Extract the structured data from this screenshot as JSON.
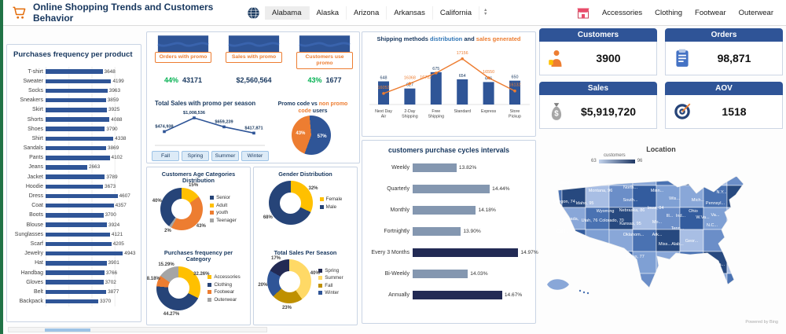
{
  "header": {
    "title": "Online Shopping Trends and Customers Behavior",
    "states": [
      "Alabama",
      "Alaska",
      "Arizona",
      "Arkansas",
      "California"
    ],
    "categories": [
      "Accessories",
      "Clothing",
      "Footwear",
      "Outerwear"
    ],
    "icons": [
      "cart-icon",
      "globe-icon",
      "shop-icon",
      "slicer-scroll-icon"
    ]
  },
  "promo": {
    "banners": [
      {
        "label": "Orders with promo",
        "pct": "44%",
        "value": "43171"
      },
      {
        "label": "Sales with promo",
        "pct": "",
        "value": "$2,560,564"
      },
      {
        "label": "Customers use promo",
        "pct": "43%",
        "value": "1677"
      }
    ],
    "season_buttons": [
      "Fall",
      "Spring",
      "Summer",
      "Winter"
    ],
    "pie_title_parts": [
      "Promo code vs ",
      "non promo code",
      " users"
    ]
  },
  "kpis": [
    {
      "label": "Customers",
      "value": "3900",
      "icon": "shopper-icon"
    },
    {
      "label": "Orders",
      "value": "98,871",
      "icon": "clipboard-icon"
    },
    {
      "label": "Sales",
      "value": "$5,919,720",
      "icon": "moneybag-icon"
    },
    {
      "label": "AOV",
      "value": "1518",
      "icon": "target-icon"
    }
  ],
  "chart_data": [
    {
      "id": "products",
      "type": "bar",
      "orientation": "horizontal",
      "title": "Purchases frequency per product",
      "categories": [
        "T-shirt",
        "Sweater",
        "Socks",
        "Sneakers",
        "Skirt",
        "Shorts",
        "Shoes",
        "Shirt",
        "Sandals",
        "Pants",
        "Jeans",
        "Jacket",
        "Hoodie",
        "Dress",
        "Coat",
        "Boots",
        "Blouse",
        "Sunglasses",
        "Scarf",
        "Jewelry",
        "Hat",
        "Handbag",
        "Gloves",
        "Belt",
        "Backpack"
      ],
      "values": [
        3648,
        4199,
        3963,
        3859,
        3925,
        4088,
        3790,
        4338,
        3869,
        4102,
        2663,
        3789,
        3673,
        4607,
        4357,
        3700,
        3924,
        4121,
        4205,
        4943,
        3901,
        3766,
        3702,
        3877,
        3370
      ],
      "xlim": [
        0,
        5000
      ],
      "bar_color": "#2F5597"
    },
    {
      "id": "promo_season_sales",
      "type": "line",
      "title": "Total Sales with promo per season",
      "categories": [
        "Fall",
        "Spring",
        "Summer",
        "Winter"
      ],
      "values": [
        474938,
        1008536,
        659239,
        417871
      ],
      "labels": [
        "$474,938",
        "$1,008,536",
        "$659,239",
        "$417,871"
      ],
      "ylim": [
        0,
        1100000
      ],
      "line_color": "#2F5597"
    },
    {
      "id": "promo_users",
      "type": "pie",
      "title": "Promo code vs non promo code users",
      "categories": [
        "Promo code users",
        "Non promo code users"
      ],
      "values": [
        43,
        57
      ],
      "labels": [
        "43%",
        "57%"
      ],
      "colors": [
        "#ED7D31",
        "#2F5597"
      ],
      "start": 200
    },
    {
      "id": "age_distribution",
      "type": "pie",
      "donut": true,
      "title": "Customers Age Categories Distribution",
      "categories": [
        "Senior",
        "Adult",
        "youth",
        "Teenager"
      ],
      "values": [
        40,
        15,
        43,
        2
      ],
      "labels": [
        "40%",
        "15%",
        "43%",
        "2%"
      ],
      "colors": [
        "#264478",
        "#FFC000",
        "#ED7D31",
        "#A5A5A5"
      ],
      "start": 216,
      "legend_position": "right"
    },
    {
      "id": "gender_distribution",
      "type": "pie",
      "donut": true,
      "title": "Gender Distribution",
      "categories": [
        "Female",
        "Male"
      ],
      "values": [
        32,
        68
      ],
      "labels": [
        "32%",
        "68%"
      ],
      "colors": [
        "#FFC000",
        "#264478"
      ],
      "start": 0,
      "legend_position": "right"
    },
    {
      "id": "category_frequency",
      "type": "pie",
      "donut": true,
      "title": "Purchases frequency per Category",
      "categories": [
        "Accessories",
        "Clothing",
        "Footwear",
        "Outerwear"
      ],
      "values": [
        32.26,
        44.27,
        8.18,
        15.29
      ],
      "labels": [
        "32.26%",
        "44.27%",
        "8.18%",
        "15.29%"
      ],
      "colors": [
        "#FFC000",
        "#264478",
        "#ED7D31",
        "#A5A5A5"
      ],
      "start": 0,
      "legend_position": "right"
    },
    {
      "id": "season_sales_share",
      "type": "pie",
      "donut": true,
      "title": "Total Sales Per Season",
      "categories": [
        "Spring",
        "Summer",
        "Fall",
        "Winter"
      ],
      "values": [
        17,
        40,
        23,
        20
      ],
      "labels": [
        "17%",
        "40%",
        "23%",
        "20%"
      ],
      "colors": [
        "#222A54",
        "#FFD966",
        "#BF9000",
        "#2F5597"
      ],
      "start": 299,
      "legend_position": "right"
    },
    {
      "id": "shipping",
      "type": "bar",
      "combo": true,
      "title_parts": [
        "Shipping methods ",
        "distribution",
        " and ",
        "sales generated"
      ],
      "categories": [
        "Next Day\nAir",
        "2-Day\nShipping",
        "Free\nShipping",
        "Standard",
        "Express",
        "Store\nPickup"
      ],
      "series": [
        {
          "name": "distribution",
          "type": "bar",
          "color": "#2F5597",
          "values": [
            648,
            627,
            675,
            654,
            646,
            650
          ]
        },
        {
          "name": "sales generated",
          "type": "line",
          "color": "#ED7D31",
          "values": [
            16052,
            16368,
            16702,
            17156,
            16550,
            16132
          ]
        }
      ],
      "bar_ylim": [
        580,
        700
      ],
      "line_ylim": [
        15700,
        17400
      ]
    },
    {
      "id": "purchase_cycles",
      "type": "bar",
      "orientation": "horizontal",
      "title": "customers purchase cycles intervals",
      "categories": [
        "Weekly",
        "Quarterly",
        "Monthly",
        "Fortnightly",
        "Every 3 Months",
        "Bi-Weekly",
        "Annually"
      ],
      "values": [
        13.82,
        14.44,
        14.18,
        13.9,
        14.97,
        14.03,
        14.67
      ],
      "labels": [
        "13.82%",
        "14.44%",
        "14.18%",
        "13.90%",
        "14.97%",
        "14.03%",
        "14.67%"
      ],
      "bar_colors": [
        "#8497B0",
        "#8497B0",
        "#8497B0",
        "#8497B0",
        "#222A54",
        "#8497B0",
        "#222A54"
      ],
      "xlim": [
        13,
        15.2
      ]
    },
    {
      "id": "location_map",
      "type": "choropleth",
      "title": "Location",
      "legend": {
        "label": "customers",
        "min": "63",
        "max": "96"
      },
      "attribution": "Powered by Bing",
      "state_labels": [
        {
          "label": "Wash.",
          "x": 30,
          "y": 22
        },
        {
          "label": "Montana, 96",
          "x": 74,
          "y": 32
        },
        {
          "label": "North...",
          "x": 112,
          "y": 28
        },
        {
          "label": "Minn...",
          "x": 146,
          "y": 32
        },
        {
          "label": "Wis...",
          "x": 168,
          "y": 42
        },
        {
          "label": "Mich...",
          "x": 198,
          "y": 44
        },
        {
          "label": "N.Y...",
          "x": 228,
          "y": 34
        },
        {
          "label": "Oregon, 74",
          "x": 28,
          "y": 46
        },
        {
          "label": "Idaho, 95",
          "x": 54,
          "y": 48
        },
        {
          "label": "Wyoming",
          "x": 80,
          "y": 58
        },
        {
          "label": "South...",
          "x": 112,
          "y": 44
        },
        {
          "label": "Iowa, 84",
          "x": 144,
          "y": 54
        },
        {
          "label": "Ill...",
          "x": 162,
          "y": 64
        },
        {
          "label": "Ind...",
          "x": 176,
          "y": 64
        },
        {
          "label": "Ohio",
          "x": 192,
          "y": 58
        },
        {
          "label": "Pennsyl...",
          "x": 220,
          "y": 48
        },
        {
          "label": "Nevada,",
          "x": 36,
          "y": 68
        },
        {
          "label": "Utah, 76",
          "x": 60,
          "y": 70
        },
        {
          "label": "Colorado, 70",
          "x": 88,
          "y": 70
        },
        {
          "label": "Nebraska, 86",
          "x": 114,
          "y": 57
        },
        {
          "label": "Kansas, 95",
          "x": 112,
          "y": 74
        },
        {
          "label": "Mo...",
          "x": 146,
          "y": 72
        },
        {
          "label": "W.Va...",
          "x": 204,
          "y": 66
        },
        {
          "label": "Va...",
          "x": 220,
          "y": 63
        },
        {
          "label": "Calif...",
          "x": 26,
          "y": 84
        },
        {
          "label": "Oklahom...",
          "x": 116,
          "y": 88
        },
        {
          "label": "Ark...",
          "x": 146,
          "y": 88
        },
        {
          "label": "Tenn...",
          "x": 172,
          "y": 80
        },
        {
          "label": "N.C...",
          "x": 216,
          "y": 76
        },
        {
          "label": "Texas,  77",
          "x": 118,
          "y": 116
        },
        {
          "label": "Miss...",
          "x": 156,
          "y": 100
        },
        {
          "label": "Alab...",
          "x": 172,
          "y": 100
        },
        {
          "label": "Geor...",
          "x": 190,
          "y": 96
        },
        {
          "label": "Fla...",
          "x": 226,
          "y": 126
        }
      ]
    }
  ]
}
